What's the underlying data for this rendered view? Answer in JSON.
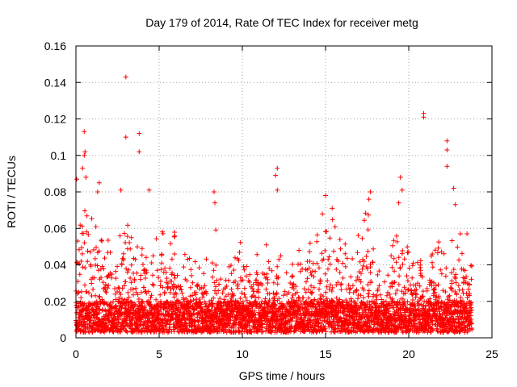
{
  "chart_data": {
    "type": "scatter",
    "title": "Day 179 of 2014, Rate Of TEC Index for receiver metg",
    "xlabel": "GPS time / hours",
    "ylabel": "ROTI / TECUs",
    "xlim": [
      0,
      25
    ],
    "ylim": [
      0,
      0.16
    ],
    "x_ticks": [
      0,
      5,
      10,
      15,
      20,
      25
    ],
    "y_ticks": [
      0,
      0.02,
      0.04,
      0.06,
      0.08,
      0.1,
      0.12,
      0.14,
      0.16
    ],
    "x_tick_labels": [
      "0",
      "5",
      "10",
      "15",
      "20",
      "25"
    ],
    "y_tick_labels": [
      "0",
      "0.02",
      "0.04",
      "0.06",
      "0.08",
      "0.1",
      "0.12",
      "0.14",
      "0.16"
    ],
    "grid": true,
    "marker": "+",
    "marker_color": "#ff0000",
    "data_range_x": [
      0,
      23.8
    ],
    "base_band": [
      0.003,
      0.02
    ],
    "envelope": {
      "x": [
        0,
        0.3,
        0.5,
        0.8,
        1.2,
        1.6,
        2.0,
        2.5,
        3.0,
        3.5,
        4.0,
        4.5,
        5.0,
        5.5,
        6.0,
        6.5,
        7.0,
        7.5,
        8.0,
        8.3,
        8.7,
        9.0,
        9.5,
        10.0,
        10.5,
        11.0,
        11.5,
        12.0,
        12.5,
        13.0,
        13.5,
        14.0,
        14.5,
        15.0,
        15.5,
        16.0,
        16.5,
        17.0,
        17.5,
        18.0,
        18.5,
        19.0,
        19.5,
        20.0,
        20.5,
        21.0,
        21.5,
        22.0,
        22.5,
        23.0,
        23.4,
        23.8
      ],
      "max": [
        0.085,
        0.07,
        0.09,
        0.06,
        0.08,
        0.06,
        0.055,
        0.05,
        0.08,
        0.05,
        0.06,
        0.045,
        0.065,
        0.05,
        0.06,
        0.05,
        0.045,
        0.04,
        0.05,
        0.075,
        0.035,
        0.04,
        0.045,
        0.055,
        0.05,
        0.055,
        0.06,
        0.065,
        0.04,
        0.04,
        0.055,
        0.05,
        0.07,
        0.075,
        0.065,
        0.06,
        0.05,
        0.06,
        0.075,
        0.04,
        0.035,
        0.05,
        0.075,
        0.05,
        0.045,
        0.04,
        0.05,
        0.055,
        0.06,
        0.05,
        0.055,
        0.04
      ]
    },
    "notable_points": [
      {
        "x": 0.05,
        "y": 0.087
      },
      {
        "x": 0.5,
        "y": 0.113
      },
      {
        "x": 0.5,
        "y": 0.1
      },
      {
        "x": 0.55,
        "y": 0.102
      },
      {
        "x": 0.4,
        "y": 0.093
      },
      {
        "x": 0.6,
        "y": 0.088
      },
      {
        "x": 1.4,
        "y": 0.085
      },
      {
        "x": 1.3,
        "y": 0.08
      },
      {
        "x": 2.7,
        "y": 0.081
      },
      {
        "x": 3.0,
        "y": 0.143
      },
      {
        "x": 3.0,
        "y": 0.11
      },
      {
        "x": 3.8,
        "y": 0.112
      },
      {
        "x": 3.8,
        "y": 0.102
      },
      {
        "x": 4.4,
        "y": 0.081
      },
      {
        "x": 8.3,
        "y": 0.08
      },
      {
        "x": 8.35,
        "y": 0.074
      },
      {
        "x": 12.1,
        "y": 0.093
      },
      {
        "x": 12.0,
        "y": 0.089
      },
      {
        "x": 12.1,
        "y": 0.081
      },
      {
        "x": 15.0,
        "y": 0.078
      },
      {
        "x": 15.4,
        "y": 0.071
      },
      {
        "x": 17.7,
        "y": 0.08
      },
      {
        "x": 17.6,
        "y": 0.076
      },
      {
        "x": 19.5,
        "y": 0.088
      },
      {
        "x": 19.6,
        "y": 0.081
      },
      {
        "x": 19.4,
        "y": 0.074
      },
      {
        "x": 20.9,
        "y": 0.123
      },
      {
        "x": 20.9,
        "y": 0.121
      },
      {
        "x": 22.3,
        "y": 0.108
      },
      {
        "x": 22.3,
        "y": 0.103
      },
      {
        "x": 22.3,
        "y": 0.094
      },
      {
        "x": 22.7,
        "y": 0.082
      },
      {
        "x": 22.8,
        "y": 0.073
      },
      {
        "x": 23.1,
        "y": 0.057
      },
      {
        "x": 23.5,
        "y": 0.057
      }
    ]
  }
}
